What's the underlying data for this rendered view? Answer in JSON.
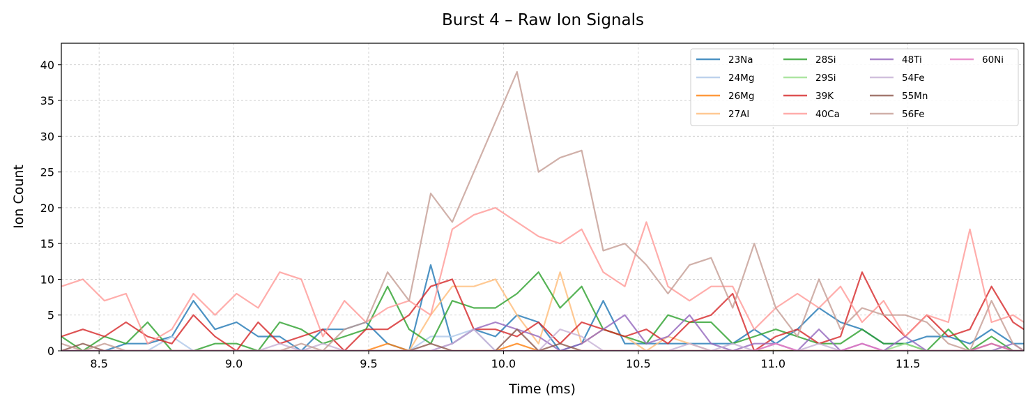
{
  "chart_data": {
    "type": "line",
    "title": "Burst 4 – Raw Ion Signals",
    "xlabel": "Time (ms)",
    "ylabel": "Ion Count",
    "xlim": [
      8.36,
      11.93
    ],
    "ylim": [
      0,
      43
    ],
    "xticks": [
      8.5,
      9.0,
      9.5,
      10.0,
      10.5,
      11.0,
      11.5
    ],
    "xtick_labels": [
      "8.5",
      "9.0",
      "9.5",
      "10.0",
      "10.5",
      "11.0",
      "11.5"
    ],
    "yticks": [
      0,
      5,
      10,
      15,
      20,
      25,
      30,
      35,
      40
    ],
    "ytick_labels": [
      "0",
      "5",
      "10",
      "15",
      "20",
      "25",
      "30",
      "35",
      "40"
    ],
    "grid": true,
    "legend_position": "top-right",
    "x": [
      8.36,
      8.44,
      8.52,
      8.6,
      8.68,
      8.77,
      8.85,
      8.93,
      9.01,
      9.09,
      9.17,
      9.25,
      9.33,
      9.41,
      9.49,
      9.57,
      9.65,
      9.73,
      9.81,
      9.89,
      9.97,
      10.05,
      10.13,
      10.21,
      10.29,
      10.37,
      10.45,
      10.53,
      10.61,
      10.69,
      10.77,
      10.85,
      10.93,
      11.01,
      11.09,
      11.17,
      11.25,
      11.33,
      11.41,
      11.49,
      11.57,
      11.65,
      11.73,
      11.81,
      11.89,
      11.93
    ],
    "series": [
      {
        "name": "23Na",
        "color": "#1f77b4",
        "values": [
          0,
          0,
          0,
          1,
          1,
          2,
          7,
          3,
          4,
          2,
          2,
          0,
          3,
          3,
          4,
          1,
          0,
          12,
          1,
          3,
          2,
          5,
          4,
          0,
          1,
          7,
          1,
          1,
          1,
          1,
          1,
          1,
          3,
          1,
          3,
          6,
          4,
          3,
          1,
          1,
          2,
          2,
          1,
          3,
          1,
          1
        ]
      },
      {
        "name": "24Mg",
        "color": "#aec7e8",
        "values": [
          0,
          0,
          0,
          0,
          0,
          2,
          0,
          0,
          0,
          0,
          0,
          0,
          0,
          0,
          0,
          0,
          0,
          2,
          2,
          3,
          0,
          0,
          0,
          0,
          0,
          0,
          0,
          0,
          0,
          0,
          0,
          0,
          0,
          0,
          0,
          0,
          0,
          0,
          0,
          0,
          0,
          0,
          0,
          0,
          0,
          0
        ]
      },
      {
        "name": "26Mg",
        "color": "#ff7f0e",
        "values": [
          0,
          0,
          0,
          0,
          0,
          0,
          0,
          0,
          0,
          0,
          0,
          0,
          0,
          0,
          0,
          1,
          0,
          0,
          0,
          0,
          0,
          1,
          0,
          0,
          0,
          0,
          0,
          0,
          0,
          0,
          0,
          0,
          0,
          0,
          0,
          0,
          0,
          0,
          0,
          0,
          0,
          0,
          0,
          0,
          0,
          0
        ]
      },
      {
        "name": "27Al",
        "color": "#ffbb78",
        "values": [
          0,
          0,
          0,
          0,
          0,
          0,
          0,
          0,
          0,
          0,
          0,
          0,
          0,
          0,
          0,
          0,
          0,
          5,
          9,
          9,
          10,
          5,
          1,
          11,
          1,
          3,
          2,
          0,
          2,
          1,
          0,
          0,
          0,
          0,
          0,
          0,
          0,
          0,
          0,
          0,
          0,
          0,
          0,
          0,
          0,
          0
        ]
      },
      {
        "name": "28Si",
        "color": "#2ca02c",
        "values": [
          2,
          0,
          2,
          1,
          4,
          0,
          0,
          1,
          1,
          0,
          4,
          3,
          1,
          2,
          3,
          9,
          3,
          1,
          7,
          6,
          6,
          8,
          11,
          6,
          9,
          3,
          2,
          1,
          5,
          4,
          4,
          1,
          2,
          3,
          2,
          1,
          1,
          3,
          1,
          1,
          0,
          3,
          0,
          2,
          0,
          0
        ]
      },
      {
        "name": "29Si",
        "color": "#98df8a",
        "values": [
          0,
          0,
          0,
          0,
          0,
          0,
          0,
          0,
          0,
          0,
          0,
          0,
          0,
          0,
          0,
          0,
          0,
          0,
          0,
          0,
          0,
          0,
          0,
          0,
          0,
          0,
          0,
          0,
          0,
          0,
          0,
          0,
          0,
          0,
          0,
          0,
          0,
          0,
          0,
          1,
          0,
          0,
          0,
          0,
          0,
          0
        ]
      },
      {
        "name": "39K",
        "color": "#d62728",
        "values": [
          2,
          3,
          2,
          4,
          2,
          1,
          5,
          2,
          0,
          4,
          1,
          2,
          3,
          0,
          3,
          3,
          5,
          9,
          10,
          3,
          3,
          2,
          4,
          1,
          4,
          3,
          2,
          3,
          1,
          4,
          5,
          8,
          0,
          2,
          3,
          1,
          2,
          11,
          5,
          2,
          5,
          2,
          3,
          9,
          4,
          3
        ]
      },
      {
        "name": "40Ca",
        "color": "#ff9896",
        "values": [
          9,
          10,
          7,
          8,
          1,
          3,
          8,
          5,
          8,
          6,
          11,
          10,
          2,
          7,
          4,
          6,
          7,
          5,
          17,
          19,
          20,
          18,
          16,
          15,
          17,
          11,
          9,
          18,
          9,
          7,
          9,
          9,
          3,
          6,
          8,
          6,
          9,
          4,
          7,
          2,
          5,
          4,
          17,
          4,
          5,
          4
        ]
      },
      {
        "name": "48Ti",
        "color": "#9467bd",
        "values": [
          0,
          0,
          0,
          0,
          0,
          0,
          0,
          0,
          0,
          0,
          0,
          0,
          0,
          0,
          0,
          0,
          0,
          0,
          1,
          3,
          4,
          3,
          2,
          0,
          1,
          3,
          5,
          1,
          2,
          5,
          1,
          0,
          1,
          1,
          0,
          3,
          0,
          1,
          0,
          2,
          0,
          0,
          0,
          0,
          1,
          0
        ]
      },
      {
        "name": "54Fe",
        "color": "#c5b0d5",
        "values": [
          0,
          0,
          0,
          0,
          0,
          0,
          0,
          0,
          0,
          0,
          1,
          0,
          1,
          0,
          0,
          0,
          0,
          0,
          1,
          3,
          0,
          0,
          0,
          3,
          2,
          0,
          0,
          0,
          0,
          1,
          0,
          1,
          0,
          1,
          0,
          1,
          0,
          0,
          0,
          0,
          0,
          0,
          0,
          0,
          0,
          0
        ]
      },
      {
        "name": "55Mn",
        "color": "#8c564b",
        "values": [
          0,
          1,
          0,
          0,
          0,
          0,
          0,
          0,
          0,
          0,
          0,
          0,
          0,
          0,
          0,
          0,
          0,
          1,
          0,
          0,
          0,
          3,
          0,
          1,
          0,
          0,
          0,
          0,
          0,
          0,
          0,
          0,
          0,
          0,
          0,
          0,
          0,
          0,
          0,
          0,
          0,
          0,
          0,
          1,
          0,
          0
        ]
      },
      {
        "name": "56Fe",
        "color": "#c49c94",
        "values": [
          1,
          0,
          1,
          0,
          0,
          0,
          0,
          0,
          0,
          0,
          0,
          1,
          0,
          3,
          4,
          11,
          7,
          22,
          18,
          25,
          32,
          39,
          25,
          27,
          28,
          14,
          15,
          12,
          8,
          12,
          13,
          6,
          15,
          6,
          2,
          10,
          3,
          6,
          5,
          5,
          4,
          1,
          0,
          7,
          1,
          0
        ]
      },
      {
        "name": "60Ni",
        "color": "#e377c2",
        "values": [
          0,
          0,
          0,
          0,
          0,
          0,
          0,
          0,
          0,
          0,
          0,
          0,
          0,
          0,
          0,
          0,
          0,
          0,
          0,
          0,
          0,
          0,
          0,
          0,
          0,
          0,
          0,
          0,
          0,
          0,
          0,
          0,
          0,
          1,
          0,
          0,
          0,
          1,
          0,
          0,
          0,
          0,
          0,
          1,
          0,
          0
        ]
      }
    ]
  }
}
